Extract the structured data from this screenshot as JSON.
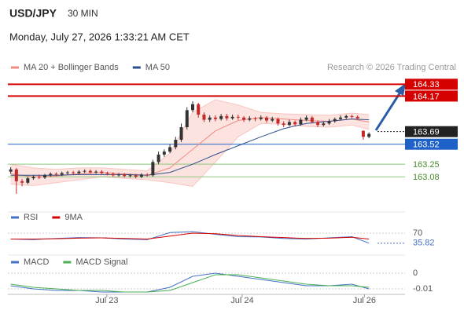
{
  "header": {
    "symbol": "USD/JPY",
    "interval": "30 MIN",
    "datetime": "Monday, July 27, 2026 1:33:21 AM CET",
    "credit": "Research © 2026 Trading Central"
  },
  "chart_data": [
    {
      "type": "candlestick",
      "color_up": "#333333",
      "color_down": "#c62828",
      "open": [
        163.15,
        163.18,
        163.02,
        163.0,
        163.06,
        163.08,
        163.07,
        163.1,
        163.12,
        163.11,
        163.13,
        163.14,
        163.13,
        163.15,
        163.16,
        163.14,
        163.15,
        163.13,
        163.12,
        163.1,
        163.11,
        163.09,
        163.1,
        163.08,
        163.11,
        163.1,
        163.28,
        163.38,
        163.42,
        163.48,
        163.58,
        163.75,
        163.98,
        164.06,
        163.92,
        163.85,
        163.88,
        163.86,
        163.9,
        163.87,
        163.89,
        163.88,
        163.85,
        163.87,
        163.86,
        163.88,
        163.84,
        163.86,
        163.8,
        163.78,
        163.82,
        163.79,
        163.85,
        163.88,
        163.82,
        163.78,
        163.8,
        163.83,
        163.86,
        163.88,
        163.9,
        163.89,
        163.7,
        163.62
      ],
      "high": [
        163.21,
        163.2,
        163.05,
        163.08,
        163.1,
        163.11,
        163.12,
        163.14,
        163.14,
        163.15,
        163.16,
        163.16,
        163.17,
        163.18,
        163.18,
        163.17,
        163.17,
        163.15,
        163.14,
        163.13,
        163.13,
        163.12,
        163.12,
        163.13,
        163.13,
        163.31,
        163.42,
        163.45,
        163.52,
        163.62,
        163.8,
        164.02,
        164.1,
        164.08,
        163.95,
        163.91,
        163.91,
        163.93,
        163.93,
        163.92,
        163.92,
        163.9,
        163.9,
        163.89,
        163.91,
        163.9,
        163.89,
        163.88,
        163.83,
        163.85,
        163.84,
        163.88,
        163.91,
        163.9,
        163.84,
        163.83,
        163.86,
        163.88,
        163.91,
        163.92,
        163.92,
        163.91,
        163.71,
        163.68
      ],
      "low": [
        163.12,
        162.85,
        162.95,
        162.98,
        163.04,
        163.05,
        163.05,
        163.08,
        163.09,
        163.09,
        163.11,
        163.11,
        163.11,
        163.13,
        163.12,
        163.12,
        163.11,
        163.1,
        163.08,
        163.08,
        163.07,
        163.07,
        163.06,
        163.06,
        163.08,
        163.08,
        163.25,
        163.35,
        163.4,
        163.45,
        163.55,
        163.72,
        163.95,
        163.88,
        163.82,
        163.82,
        163.83,
        163.84,
        163.84,
        163.85,
        163.85,
        163.82,
        163.83,
        163.83,
        163.84,
        163.81,
        163.82,
        163.77,
        163.75,
        163.76,
        163.76,
        163.77,
        163.83,
        163.8,
        163.75,
        163.76,
        163.78,
        163.81,
        163.84,
        163.86,
        163.87,
        163.85,
        163.58,
        163.6
      ],
      "close": [
        163.18,
        163.02,
        163.0,
        163.06,
        163.08,
        163.07,
        163.1,
        163.12,
        163.11,
        163.13,
        163.14,
        163.13,
        163.15,
        163.16,
        163.14,
        163.15,
        163.13,
        163.12,
        163.1,
        163.11,
        163.09,
        163.1,
        163.08,
        163.11,
        163.1,
        163.28,
        163.38,
        163.42,
        163.48,
        163.58,
        163.75,
        163.98,
        164.06,
        163.92,
        163.85,
        163.88,
        163.86,
        163.9,
        163.87,
        163.89,
        163.88,
        163.85,
        163.87,
        163.86,
        163.88,
        163.84,
        163.86,
        163.8,
        163.78,
        163.82,
        163.79,
        163.85,
        163.88,
        163.82,
        163.78,
        163.8,
        163.83,
        163.86,
        163.88,
        163.9,
        163.89,
        163.87,
        163.62,
        163.66
      ],
      "index": [
        0,
        4,
        8,
        12,
        16,
        20,
        24,
        28,
        32,
        36,
        40,
        44,
        48,
        52,
        56,
        60,
        63
      ],
      "series": [
        {
          "name": "MA 20 + Bollinger Bands",
          "color": "#f28b82",
          "band_color": "#fde3e0",
          "values": [
            163.12,
            163.08,
            163.09,
            163.12,
            163.14,
            163.12,
            163.1,
            163.2,
            163.45,
            163.7,
            163.84,
            163.88,
            163.86,
            163.84,
            163.83,
            163.86,
            163.82
          ],
          "upper": [
            163.25,
            163.2,
            163.18,
            163.2,
            163.2,
            163.18,
            163.16,
            163.4,
            163.95,
            164.12,
            164.05,
            163.95,
            163.93,
            163.92,
            163.91,
            163.94,
            163.92
          ],
          "lower": [
            162.98,
            162.96,
            163.0,
            163.04,
            163.08,
            163.06,
            163.04,
            163.0,
            162.95,
            163.28,
            163.62,
            163.8,
            163.79,
            163.76,
            163.75,
            163.78,
            163.72
          ]
        },
        {
          "name": "MA 50",
          "color": "#2b4f8c",
          "values": [
            163.1,
            163.1,
            163.1,
            163.11,
            163.11,
            163.11,
            163.1,
            163.14,
            163.25,
            163.38,
            163.5,
            163.62,
            163.73,
            163.8,
            163.83,
            163.86,
            163.85
          ]
        }
      ],
      "levels": [
        {
          "value": 164.33,
          "color": "#d50000",
          "box": true
        },
        {
          "value": 164.17,
          "color": "#d50000",
          "box": true
        },
        {
          "value": 163.69,
          "color": "#222222",
          "box": true,
          "current": true
        },
        {
          "value": 163.52,
          "color": "#1e62c8",
          "box": true
        },
        {
          "value": 163.25,
          "color": "#8bc97a",
          "box": false
        },
        {
          "value": 163.08,
          "color": "#8bc97a",
          "box": false
        }
      ],
      "xlim": [
        -0.5,
        64.5
      ],
      "ylim": [
        162.69,
        164.45
      ],
      "xticks": [
        {
          "value": 16.9,
          "label": "Jul 23"
        },
        {
          "value": 40.7,
          "label": "Jul 24"
        },
        {
          "value": 62.2,
          "label": "Jul 26"
        }
      ]
    },
    {
      "type": "line",
      "index": [
        0,
        4,
        8,
        12,
        16,
        20,
        24,
        28,
        32,
        36,
        40,
        44,
        48,
        52,
        56,
        60,
        63
      ],
      "series": [
        {
          "name": "RSI",
          "color": "#4472c4",
          "values": [
            50,
            48,
            52,
            55,
            54,
            50,
            48,
            72,
            75,
            66,
            58,
            57,
            52,
            50,
            54,
            58,
            35.82
          ]
        },
        {
          "name": "9MA",
          "color": "#d50000",
          "values": [
            50,
            50,
            51,
            53,
            54,
            52,
            50,
            60,
            70,
            68,
            62,
            58,
            55,
            52,
            53,
            56,
            50
          ]
        }
      ],
      "xlim": [
        -0.5,
        64.5
      ],
      "ylim": [
        14,
        102
      ],
      "yticks": [
        70
      ]
    },
    {
      "type": "line",
      "index": [
        0,
        4,
        8,
        12,
        16,
        20,
        24,
        28,
        32,
        36,
        40,
        44,
        48,
        52,
        56,
        60,
        63
      ],
      "series": [
        {
          "name": "MACD",
          "color": "#4472c4",
          "values": [
            -0.008,
            -0.01,
            -0.011,
            -0.011,
            -0.012,
            -0.012,
            -0.012,
            -0.009,
            -0.002,
            0.0,
            -0.002,
            -0.004,
            -0.006,
            -0.008,
            -0.008,
            -0.007,
            -0.01
          ]
        },
        {
          "name": "MACD Signal",
          "color": "#4caf50",
          "values": [
            -0.007,
            -0.009,
            -0.01,
            -0.011,
            -0.011,
            -0.012,
            -0.012,
            -0.011,
            -0.006,
            -0.001,
            -0.001,
            -0.003,
            -0.005,
            -0.007,
            -0.008,
            -0.008,
            -0.009
          ]
        }
      ],
      "xlim": [
        -0.5,
        64.5
      ],
      "ylim": [
        -0.012,
        0.004
      ],
      "yticks": [
        0,
        -0.01
      ]
    }
  ]
}
